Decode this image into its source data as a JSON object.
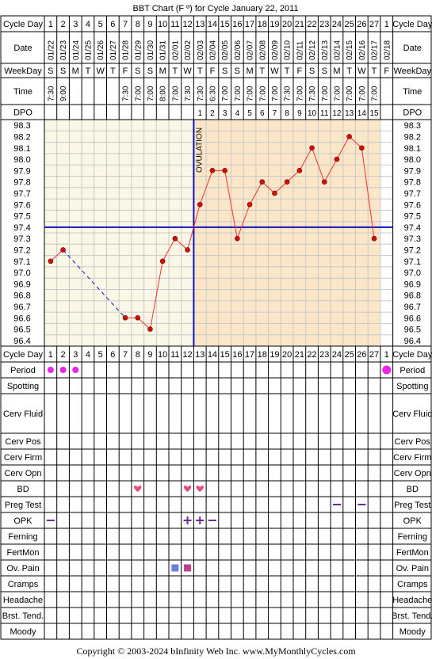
{
  "title": "BBT Chart (F º) for Cycle January 22, 2011",
  "row_labels": {
    "cycle_day": "Cycle Day",
    "date": "Date",
    "weekday": "WeekDay",
    "time": "Time",
    "dpo": "DPO"
  },
  "chart_data": {
    "type": "line",
    "cycle_days": [
      "1",
      "2",
      "3",
      "4",
      "5",
      "6",
      "7",
      "8",
      "9",
      "10",
      "11",
      "12",
      "13",
      "14",
      "15",
      "16",
      "17",
      "18",
      "19",
      "20",
      "21",
      "22",
      "23",
      "24",
      "25",
      "26",
      "27",
      "1"
    ],
    "dates": [
      "01/22",
      "01/23",
      "01/24",
      "01/25",
      "01/26",
      "01/27",
      "01/28",
      "01/29",
      "01/30",
      "01/31",
      "02/01",
      "02/02",
      "02/03",
      "02/04",
      "02/05",
      "02/06",
      "02/07",
      "02/08",
      "02/09",
      "02/10",
      "02/11",
      "02/12",
      "02/13",
      "02/14",
      "02/15",
      "02/16",
      "02/17",
      "02/18"
    ],
    "weekdays": [
      "S",
      "S",
      "M",
      "T",
      "W",
      "T",
      "F",
      "S",
      "S",
      "M",
      "T",
      "W",
      "T",
      "F",
      "S",
      "S",
      "M",
      "T",
      "W",
      "T",
      "F",
      "S",
      "S",
      "M",
      "T",
      "W",
      "T",
      "F"
    ],
    "times": [
      "7:30",
      "9:00",
      "",
      "",
      "",
      "",
      "7:30",
      "7:00",
      "7:00",
      "8:00",
      "7:00",
      "7:30",
      "7:30",
      "6:30",
      "7:00",
      "7:00",
      "7:00",
      "7:00",
      "7:00",
      "7:30",
      "7:00",
      "7:30",
      "7:00",
      "7:00",
      "7:00",
      "7:00",
      "7:00",
      ""
    ],
    "dpo": [
      "",
      "",
      "",
      "",
      "",
      "",
      "",
      "",
      "",
      "",
      "",
      "",
      "1",
      "2",
      "3",
      "4",
      "5",
      "6",
      "7",
      "8",
      "9",
      "10",
      "11",
      "12",
      "13",
      "14",
      "15",
      ""
    ],
    "temperatures": [
      97.1,
      97.2,
      null,
      null,
      null,
      null,
      96.6,
      96.6,
      96.5,
      97.1,
      97.3,
      97.2,
      97.6,
      97.9,
      97.9,
      97.3,
      97.6,
      97.8,
      97.7,
      97.8,
      97.9,
      98.1,
      97.8,
      98.0,
      98.2,
      98.1,
      97.3,
      null
    ],
    "y_ticks": [
      "98.3",
      "98.2",
      "98.1",
      "98.0",
      "97.9",
      "97.8",
      "97.7",
      "97.6",
      "97.5",
      "97.4",
      "97.3",
      "97.2",
      "97.1",
      "97.0",
      "96.9",
      "96.8",
      "96.7",
      "96.6",
      "96.5",
      "96.4"
    ],
    "ylim": [
      96.4,
      98.3
    ],
    "coverline": 97.4,
    "ovulation_day_index": 11,
    "ovulation_label": "OVULATION",
    "grid": true
  },
  "fertility_rows": [
    {
      "label": "Cycle Day"
    },
    {
      "label": "Period"
    },
    {
      "label": "Spotting"
    },
    {
      "label": "Cerv Fluid"
    },
    {
      "label": "Cerv Pos"
    },
    {
      "label": "Cerv Firm"
    },
    {
      "label": "Cerv Opn"
    },
    {
      "label": "BD"
    },
    {
      "label": "Preg Test"
    },
    {
      "label": "OPK"
    },
    {
      "label": "Ferning"
    },
    {
      "label": "FertMon"
    },
    {
      "label": "Ov. Pain"
    },
    {
      "label": "Cramps"
    },
    {
      "label": "Headache"
    },
    {
      "label": "Brst. Tend."
    },
    {
      "label": "Moody"
    }
  ],
  "markers": {
    "period_days": [
      0,
      1,
      2,
      27
    ],
    "bd_days": [
      7,
      11,
      12
    ],
    "preg_test_negative_days": [
      23,
      25
    ],
    "opk_negative_days": [
      0,
      13
    ],
    "opk_positive_days": [
      11,
      12
    ],
    "ov_pain_days": [
      {
        "day": 10,
        "color": "#6b7fd6"
      },
      {
        "day": 11,
        "color": "#c0408f"
      }
    ]
  },
  "colors": {
    "pre_ov_bg": "#fbf7e6",
    "post_ov_bg": "#fbe6c7",
    "grid": "#c8c8c8",
    "temp_line": "#ee3030",
    "temp_point": "#d01010",
    "coverline": "#1010c0",
    "ovulation_line": "#1010c0",
    "period": "#ee22ee",
    "bd": "#e8488a",
    "opk": "#6a2a9a",
    "preg_test": "#6a2a9a"
  },
  "copyright": "Copyright © 2003-2024 bInfinity Web Inc.     www.MyMonthlyCycles.com"
}
